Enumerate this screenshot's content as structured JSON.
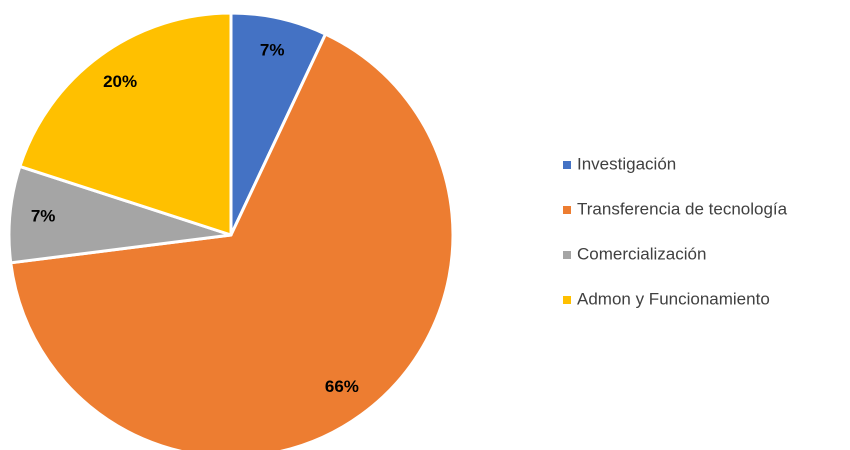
{
  "chart_data": {
    "type": "pie",
    "categories": [
      "Investigación",
      "Transferencia de tecnología",
      "Comercialización",
      "Admon y Funcionamiento"
    ],
    "values": [
      7,
      66,
      7,
      20
    ],
    "value_labels": [
      "7%",
      "66%",
      "7%",
      "20%"
    ],
    "colors": [
      "#4472c4",
      "#ed7d31",
      "#a5a5a5",
      "#ffc000"
    ],
    "legend": "right"
  }
}
